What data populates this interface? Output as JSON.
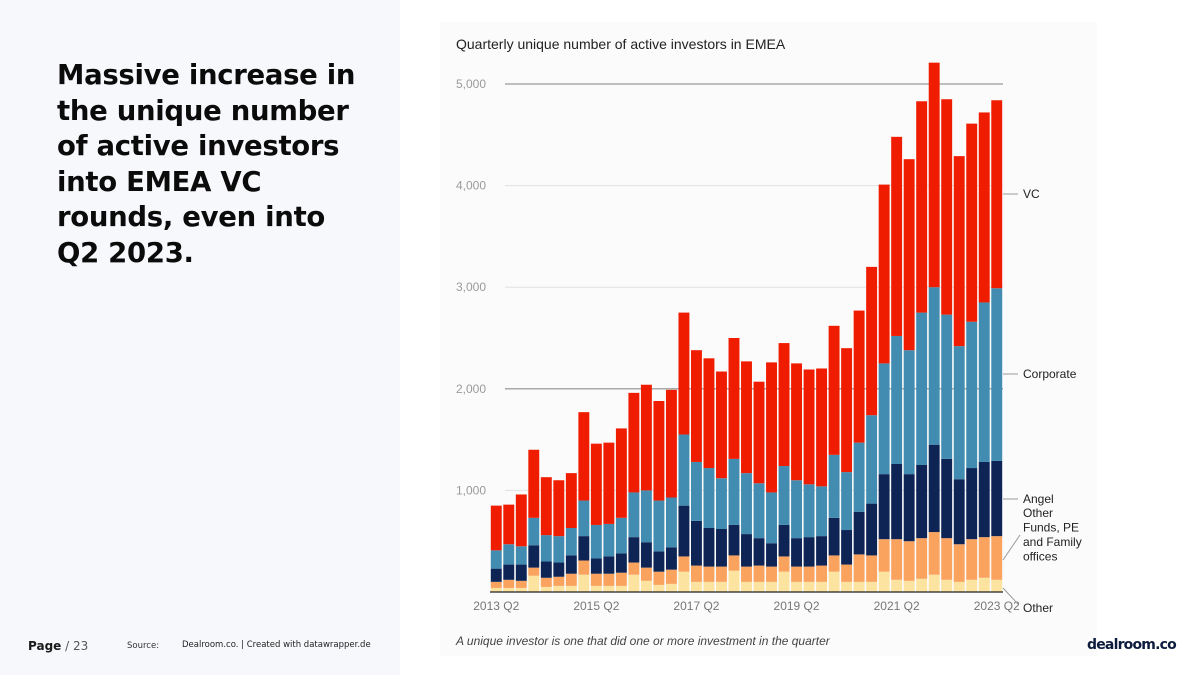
{
  "slide": {
    "headline": "Massive increase in the unique number of active investors into EMEA VC rounds, even into Q2 2023.",
    "headline_lines": [
      "Massive increase in",
      "the unique number",
      "of active investors",
      "into EMEA VC",
      "rounds, even into",
      "Q2 2023."
    ],
    "page_label": "Page",
    "page_total": "/ 23",
    "source_label": "Source:",
    "source_text": "Dealroom.co. | Created with datawrapper.de",
    "logo": "dealroom.co"
  },
  "chart_data": {
    "type": "bar",
    "stacked": true,
    "title": "Quarterly unique number of active investors in EMEA",
    "note": "A unique investor is one that did one or more investment in the quarter",
    "xlabel": "",
    "ylabel": "",
    "ylim": [
      0,
      5200
    ],
    "yticks": [
      1000,
      2000,
      3000,
      4000,
      5000
    ],
    "ytick_labels": [
      "1,000",
      "2,000",
      "3,000",
      "4,000",
      "5,000"
    ],
    "grid": true,
    "legend": "right-inline",
    "x_tick_labels": [
      "2013 Q2",
      "2015 Q2",
      "2017 Q2",
      "2019 Q2",
      "2021 Q2",
      "2023 Q2"
    ],
    "categories": [
      "2013 Q2",
      "2013 Q3",
      "2013 Q4",
      "2014 Q1",
      "2014 Q2",
      "2014 Q3",
      "2014 Q4",
      "2015 Q1",
      "2015 Q2",
      "2015 Q3",
      "2015 Q4",
      "2016 Q1",
      "2016 Q2",
      "2016 Q3",
      "2016 Q4",
      "2017 Q1",
      "2017 Q2",
      "2017 Q3",
      "2017 Q4",
      "2018 Q1",
      "2018 Q2",
      "2018 Q3",
      "2018 Q4",
      "2019 Q1",
      "2019 Q2",
      "2019 Q3",
      "2019 Q4",
      "2020 Q1",
      "2020 Q2",
      "2020 Q3",
      "2020 Q4",
      "2021 Q1",
      "2021 Q2",
      "2021 Q3",
      "2021 Q4",
      "2022 Q1",
      "2022 Q2",
      "2022 Q3",
      "2022 Q4",
      "2023 Q1",
      "2023 Q2"
    ],
    "series": [
      {
        "name": "Other",
        "color": "#fde3a0",
        "values": [
          40,
          40,
          40,
          160,
          50,
          60,
          60,
          170,
          60,
          60,
          60,
          170,
          110,
          70,
          80,
          200,
          100,
          100,
          100,
          210,
          100,
          100,
          100,
          200,
          100,
          100,
          100,
          200,
          100,
          100,
          100,
          200,
          120,
          110,
          130,
          170,
          120,
          100,
          120,
          140,
          120
        ]
      },
      {
        "name": "Other Funds, PE and Family offices",
        "color": "#f9a35f",
        "values": [
          60,
          80,
          70,
          80,
          90,
          90,
          120,
          140,
          120,
          120,
          130,
          120,
          130,
          130,
          140,
          150,
          160,
          150,
          150,
          150,
          150,
          160,
          150,
          150,
          150,
          150,
          160,
          160,
          170,
          270,
          260,
          320,
          400,
          390,
          400,
          420,
          410,
          370,
          400,
          400,
          430
        ]
      },
      {
        "name": "Angel",
        "color": "#0d2455",
        "values": [
          130,
          150,
          160,
          220,
          160,
          140,
          180,
          240,
          150,
          170,
          190,
          250,
          250,
          200,
          220,
          500,
          440,
          380,
          370,
          300,
          320,
          270,
          230,
          310,
          280,
          290,
          290,
          370,
          340,
          420,
          510,
          640,
          740,
          660,
          720,
          860,
          780,
          640,
          700,
          740,
          740
        ]
      },
      {
        "name": "Corporate",
        "color": "#428cb2",
        "values": [
          180,
          200,
          180,
          270,
          260,
          260,
          270,
          350,
          330,
          320,
          350,
          440,
          510,
          500,
          490,
          700,
          580,
          590,
          500,
          650,
          600,
          540,
          500,
          580,
          570,
          520,
          490,
          620,
          570,
          680,
          870,
          1090,
          1260,
          1220,
          1500,
          1550,
          1420,
          1310,
          1440,
          1570,
          1700
        ]
      },
      {
        "name": "VC",
        "color": "#f01c00",
        "values": [
          440,
          390,
          510,
          670,
          570,
          550,
          540,
          870,
          800,
          800,
          880,
          980,
          1040,
          980,
          1060,
          1200,
          1100,
          1080,
          1050,
          1190,
          1100,
          1000,
          1280,
          1210,
          1150,
          1130,
          1160,
          1270,
          1220,
          1300,
          1460,
          1760,
          1960,
          1880,
          2080,
          2210,
          2120,
          1870,
          1950,
          1870,
          1850
        ]
      }
    ],
    "legend_entries": [
      {
        "label_lines": [
          "VC"
        ]
      },
      {
        "label_lines": [
          "Corporate"
        ]
      },
      {
        "label_lines": [
          "Angel"
        ]
      },
      {
        "label_lines": [
          "Other",
          "Funds, PE",
          "and Family",
          "offices"
        ]
      },
      {
        "label_lines": [
          "Other"
        ]
      }
    ]
  }
}
